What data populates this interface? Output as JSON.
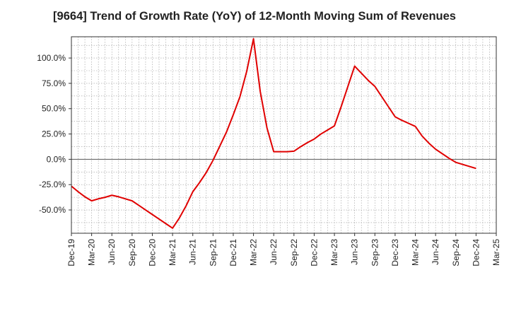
{
  "chart_data": {
    "type": "line",
    "title": "[9664]  Trend of Growth Rate (YoY) of 12-Month Moving Sum of Revenues",
    "xlabel": "",
    "ylabel": "",
    "x_tick_labels": [
      "Dec-19",
      "Mar-20",
      "Jun-20",
      "Sep-20",
      "Dec-20",
      "Mar-21",
      "Jun-21",
      "Sep-21",
      "Dec-21",
      "Mar-22",
      "Jun-22",
      "Sep-22",
      "Dec-22",
      "Mar-23",
      "Jun-23",
      "Sep-23",
      "Dec-23",
      "Mar-24",
      "Jun-24",
      "Sep-24",
      "Dec-24",
      "Mar-25"
    ],
    "y_tick_labels": [
      "100.0%",
      "75.0%",
      "50.0%",
      "25.0%",
      "0.0%",
      "-25.0%",
      "-50.0%"
    ],
    "y_ticks": [
      100,
      75,
      50,
      25,
      0,
      -25,
      -50
    ],
    "ylim": [
      -73,
      121
    ],
    "grid": true,
    "series": [
      {
        "color": "#e00000",
        "x": [
          "Dec-19",
          "Jan-20",
          "Feb-20",
          "Mar-20",
          "Apr-20",
          "May-20",
          "Jun-20",
          "Jul-20",
          "Aug-20",
          "Sep-20",
          "Oct-20",
          "Nov-20",
          "Dec-20",
          "Jan-21",
          "Feb-21",
          "Mar-21",
          "Apr-21",
          "May-21",
          "Jun-21",
          "Jul-21",
          "Aug-21",
          "Sep-21",
          "Oct-21",
          "Nov-21",
          "Dec-21",
          "Jan-22",
          "Feb-22",
          "Mar-22",
          "Apr-22",
          "May-22",
          "Jun-22",
          "Jul-22",
          "Aug-22",
          "Sep-22",
          "Oct-22",
          "Nov-22",
          "Dec-22",
          "Jan-23",
          "Feb-23",
          "Mar-23",
          "Apr-23",
          "May-23",
          "Jun-23",
          "Jul-23",
          "Aug-23",
          "Sep-23",
          "Oct-23",
          "Nov-23",
          "Dec-23",
          "Jan-24",
          "Feb-24",
          "Mar-24",
          "Apr-24",
          "May-24",
          "Jun-24",
          "Jul-24",
          "Aug-24",
          "Sep-24",
          "Oct-24",
          "Nov-24",
          "Dec-24"
        ],
        "values": [
          -26.5,
          -32,
          -37,
          -41,
          -39,
          -37.5,
          -35.5,
          -37,
          -39,
          -41,
          -45.5,
          -50,
          -54.5,
          -59,
          -63.5,
          -68,
          -58,
          -46,
          -32,
          -23,
          -13,
          -1,
          13,
          27,
          44,
          62,
          87,
          119,
          67,
          31,
          7.5,
          7.5,
          7.5,
          8,
          12.5,
          16.5,
          20,
          25,
          29,
          33,
          52,
          72,
          92,
          85,
          78,
          72,
          62,
          52,
          42,
          38.5,
          35.5,
          32.5,
          23,
          16,
          10,
          5.5,
          1,
          -3,
          -5,
          -7,
          -9
        ]
      }
    ]
  }
}
